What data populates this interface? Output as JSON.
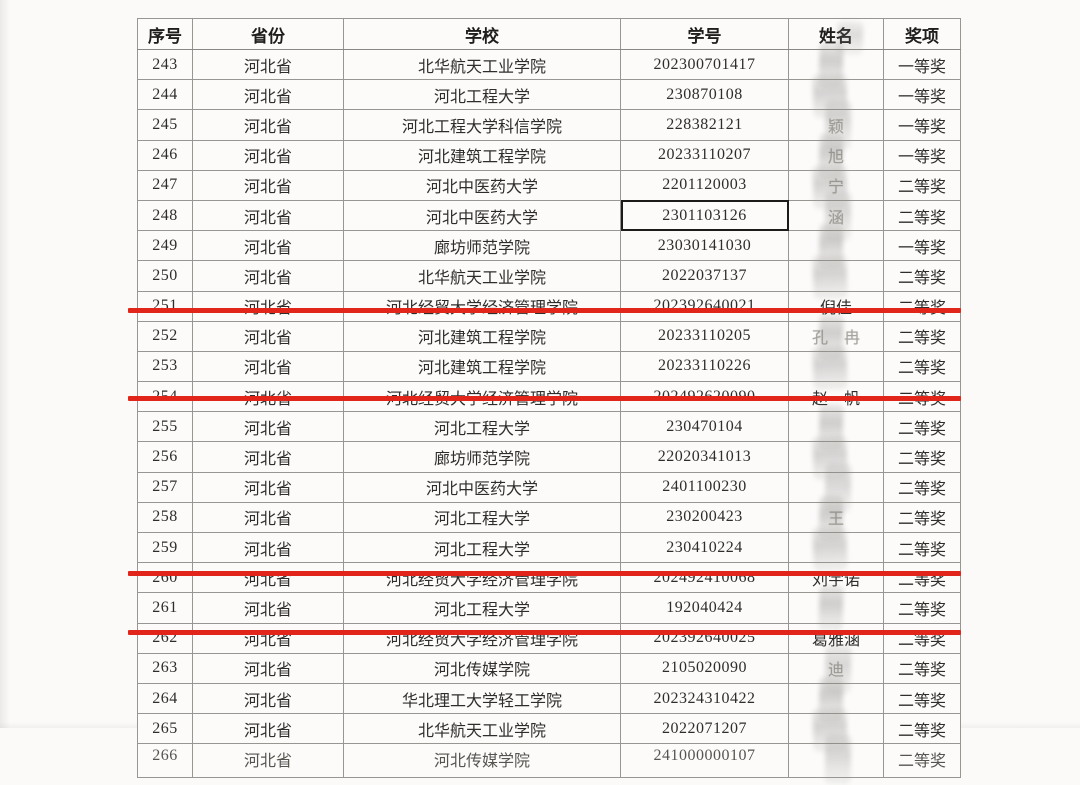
{
  "document": {
    "headers": [
      "序号",
      "省份",
      "学校",
      "学号",
      "姓名",
      "奖项"
    ],
    "rows": [
      {
        "no": "243",
        "province": "河北省",
        "school": "北华航天工业学院",
        "student_id": "202300701417",
        "name": "",
        "name_state": "redacted",
        "name_fragment": "",
        "award": "一等奖",
        "underline": false,
        "id_boxed": false
      },
      {
        "no": "244",
        "province": "河北省",
        "school": "河北工程大学",
        "student_id": "230870108",
        "name": "",
        "name_state": "redacted",
        "name_fragment": "",
        "award": "一等奖",
        "underline": false,
        "id_boxed": false
      },
      {
        "no": "245",
        "province": "河北省",
        "school": "河北工程大学科信学院",
        "student_id": "228382121",
        "name": "",
        "name_state": "fragment",
        "name_fragment": "颖",
        "award": "一等奖",
        "underline": false,
        "id_boxed": false
      },
      {
        "no": "246",
        "province": "河北省",
        "school": "河北建筑工程学院",
        "student_id": "20233110207",
        "name": "",
        "name_state": "fragment",
        "name_fragment": "旭",
        "award": "一等奖",
        "underline": false,
        "id_boxed": false
      },
      {
        "no": "247",
        "province": "河北省",
        "school": "河北中医药大学",
        "student_id": "2201120003",
        "name": "",
        "name_state": "fragment",
        "name_fragment": "宁",
        "award": "二等奖",
        "underline": false,
        "id_boxed": false
      },
      {
        "no": "248",
        "province": "河北省",
        "school": "河北中医药大学",
        "student_id": "2301103126",
        "name": "",
        "name_state": "fragment",
        "name_fragment": "涵",
        "award": "二等奖",
        "underline": false,
        "id_boxed": true
      },
      {
        "no": "249",
        "province": "河北省",
        "school": "廊坊师范学院",
        "student_id": "23030141030",
        "name": "",
        "name_state": "redacted",
        "name_fragment": "",
        "award": "一等奖",
        "underline": false,
        "id_boxed": false
      },
      {
        "no": "250",
        "province": "河北省",
        "school": "北华航天工业学院",
        "student_id": "2022037137",
        "name": "",
        "name_state": "redacted",
        "name_fragment": "",
        "award": "二等奖",
        "underline": false,
        "id_boxed": false
      },
      {
        "no": "251",
        "province": "河北省",
        "school": "河北经贸大学经济管理学院",
        "student_id": "202392640021",
        "name": "倪佳",
        "name_state": "visible",
        "name_fragment": "",
        "award": "二等奖",
        "underline": true,
        "id_boxed": false
      },
      {
        "no": "252",
        "province": "河北省",
        "school": "河北建筑工程学院",
        "student_id": "20233110205",
        "name": "",
        "name_state": "fragment",
        "name_fragment": "孔　冉",
        "award": "二等奖",
        "underline": false,
        "id_boxed": false
      },
      {
        "no": "253",
        "province": "河北省",
        "school": "河北建筑工程学院",
        "student_id": "20233110226",
        "name": "",
        "name_state": "redacted",
        "name_fragment": "",
        "award": "二等奖",
        "underline": false,
        "id_boxed": false
      },
      {
        "no": "254",
        "province": "河北省",
        "school": "河北经贸大学经济管理学院",
        "student_id": "202492620090",
        "name": "赵一帆",
        "name_state": "visible",
        "name_fragment": "",
        "award": "二等奖",
        "underline": true,
        "id_boxed": false
      },
      {
        "no": "255",
        "province": "河北省",
        "school": "河北工程大学",
        "student_id": "230470104",
        "name": "",
        "name_state": "redacted",
        "name_fragment": "",
        "award": "二等奖",
        "underline": false,
        "id_boxed": false
      },
      {
        "no": "256",
        "province": "河北省",
        "school": "廊坊师范学院",
        "student_id": "22020341013",
        "name": "",
        "name_state": "redacted",
        "name_fragment": "",
        "award": "二等奖",
        "underline": false,
        "id_boxed": false
      },
      {
        "no": "257",
        "province": "河北省",
        "school": "河北中医药大学",
        "student_id": "2401100230",
        "name": "",
        "name_state": "redacted",
        "name_fragment": "",
        "award": "二等奖",
        "underline": false,
        "id_boxed": false
      },
      {
        "no": "258",
        "province": "河北省",
        "school": "河北工程大学",
        "student_id": "230200423",
        "name": "",
        "name_state": "fragment",
        "name_fragment": "王",
        "award": "二等奖",
        "underline": false,
        "id_boxed": false
      },
      {
        "no": "259",
        "province": "河北省",
        "school": "河北工程大学",
        "student_id": "230410224",
        "name": "",
        "name_state": "redacted",
        "name_fragment": "",
        "award": "二等奖",
        "underline": false,
        "id_boxed": false
      },
      {
        "no": "260",
        "province": "河北省",
        "school": "河北经贸大学经济管理学院",
        "student_id": "202492410068",
        "name": "刘宇诺",
        "name_state": "visible",
        "name_fragment": "",
        "award": "二等奖",
        "underline": true,
        "id_boxed": false
      },
      {
        "no": "261",
        "province": "河北省",
        "school": "河北工程大学",
        "student_id": "192040424",
        "name": "",
        "name_state": "redacted",
        "name_fragment": "",
        "award": "二等奖",
        "underline": false,
        "id_boxed": false
      },
      {
        "no": "262",
        "province": "河北省",
        "school": "河北经贸大学经济管理学院",
        "student_id": "202392640025",
        "name": "葛雅涵",
        "name_state": "visible",
        "name_fragment": "",
        "award": "二等奖",
        "underline": true,
        "id_boxed": false
      },
      {
        "no": "263",
        "province": "河北省",
        "school": "河北传媒学院",
        "student_id": "2105020090",
        "name": "",
        "name_state": "fragment",
        "name_fragment": "迪",
        "award": "二等奖",
        "underline": false,
        "id_boxed": false
      },
      {
        "no": "264",
        "province": "河北省",
        "school": "华北理工大学轻工学院",
        "student_id": "202324310422",
        "name": "",
        "name_state": "redacted",
        "name_fragment": "",
        "award": "二等奖",
        "underline": false,
        "id_boxed": false
      },
      {
        "no": "265",
        "province": "河北省",
        "school": "北华航天工业学院",
        "student_id": "2022071207",
        "name": "",
        "name_state": "redacted",
        "name_fragment": "",
        "award": "二等奖",
        "underline": false,
        "id_boxed": false
      },
      {
        "no": "266",
        "province": "河北省",
        "school": "河北传媒学院",
        "student_id": "241000000107",
        "name": "",
        "name_state": "redacted",
        "name_fragment": "",
        "award": "二等奖",
        "underline": false,
        "id_boxed": false
      }
    ],
    "colors": {
      "highlight_red": "#e1251b",
      "border_grey": "#989692",
      "text": "#2e2d2b",
      "paper": "#fbfaf8",
      "smudge_grey": "#8c8a86"
    }
  }
}
